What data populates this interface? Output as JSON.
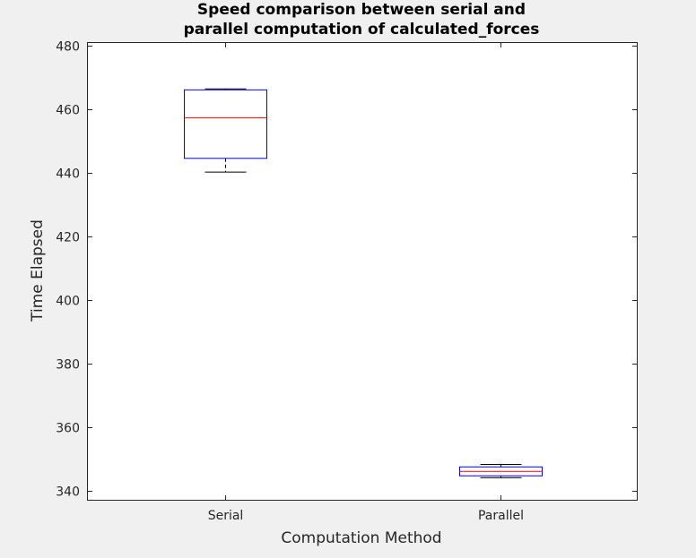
{
  "chart_data": {
    "type": "boxplot",
    "title_lines": [
      "Speed comparison between serial and",
      "parallel computation of calculated_forces"
    ],
    "xlabel": "Computation Method",
    "ylabel": "Time Elapsed",
    "ylim": [
      337,
      481
    ],
    "yticks": [
      340,
      360,
      380,
      400,
      420,
      440,
      460,
      480
    ],
    "categories": [
      "Serial",
      "Parallel"
    ],
    "boxes": [
      {
        "category": "Serial",
        "min": 440.2,
        "q1": 444.5,
        "median": 457.2,
        "q3": 466.0,
        "max": 466.3
      },
      {
        "category": "Parallel",
        "min": 344.2,
        "q1": 344.8,
        "median": 346.2,
        "q3": 347.6,
        "max": 348.4
      }
    ],
    "grid": false,
    "colors": {
      "box": "#0000ff",
      "median": "#ff0000",
      "whisker": "#000000",
      "axes_bg": "#ffffff",
      "figure_bg": "#f0f0f0"
    }
  }
}
